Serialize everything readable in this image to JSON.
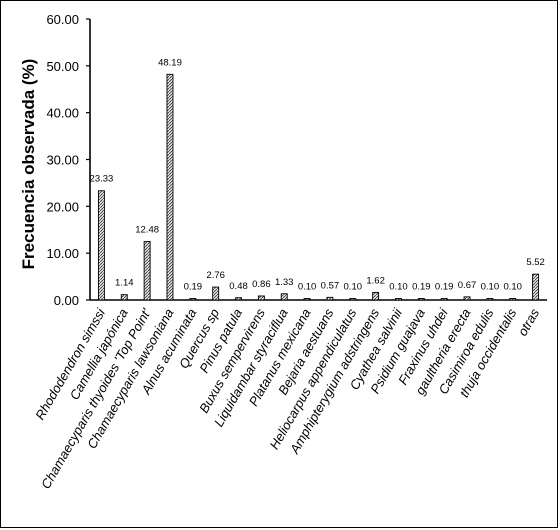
{
  "chart_data": {
    "type": "bar",
    "title": "",
    "xlabel": "",
    "ylabel": "Frecuencia observada (%)",
    "ylim": [
      0,
      60
    ],
    "yticks": [
      "0.00",
      "10.00",
      "20.00",
      "30.00",
      "40.00",
      "50.00",
      "60.00"
    ],
    "grid": false,
    "categories": [
      "Rhododendron simssi",
      "Camellia japónica",
      "Chamaecyparis thyoides 'Top Point'",
      "Chamaecyparis lawsoniana",
      "Alnus acuminata",
      "Quercus sp",
      "Pinus patula",
      "Buxus sempervirens",
      "Liquidambar styraciflua",
      "Platanus mexicana",
      "Bejaria aestuans",
      "Heliocarpus appendiculatus",
      "Amphipterygium adstringens",
      "Cyathea salvinii",
      "Psidium guajava",
      "Fraxinus uhdei",
      "gaultheria erecta",
      "Casimiroa edulis",
      "thuja occidentalis",
      "otras"
    ],
    "values": [
      23.33,
      1.14,
      12.48,
      48.19,
      0.19,
      2.76,
      0.48,
      0.86,
      1.33,
      0.1,
      0.57,
      0.1,
      1.62,
      0.1,
      0.19,
      0.19,
      0.67,
      0.1,
      0.1,
      5.52
    ],
    "value_labels": [
      "23.33",
      "1.14",
      "12.48",
      "48.19",
      "0.19",
      "2.76",
      "0.48",
      "0.86",
      "1.33",
      "0.10",
      "0.57",
      "0.10",
      "1.62",
      "0.10",
      "0.19",
      "0.19",
      "0.67",
      "0.10",
      "0.10",
      "5.52"
    ],
    "bar_fill": "#d8d8d8",
    "bar_stroke": "#000000"
  }
}
